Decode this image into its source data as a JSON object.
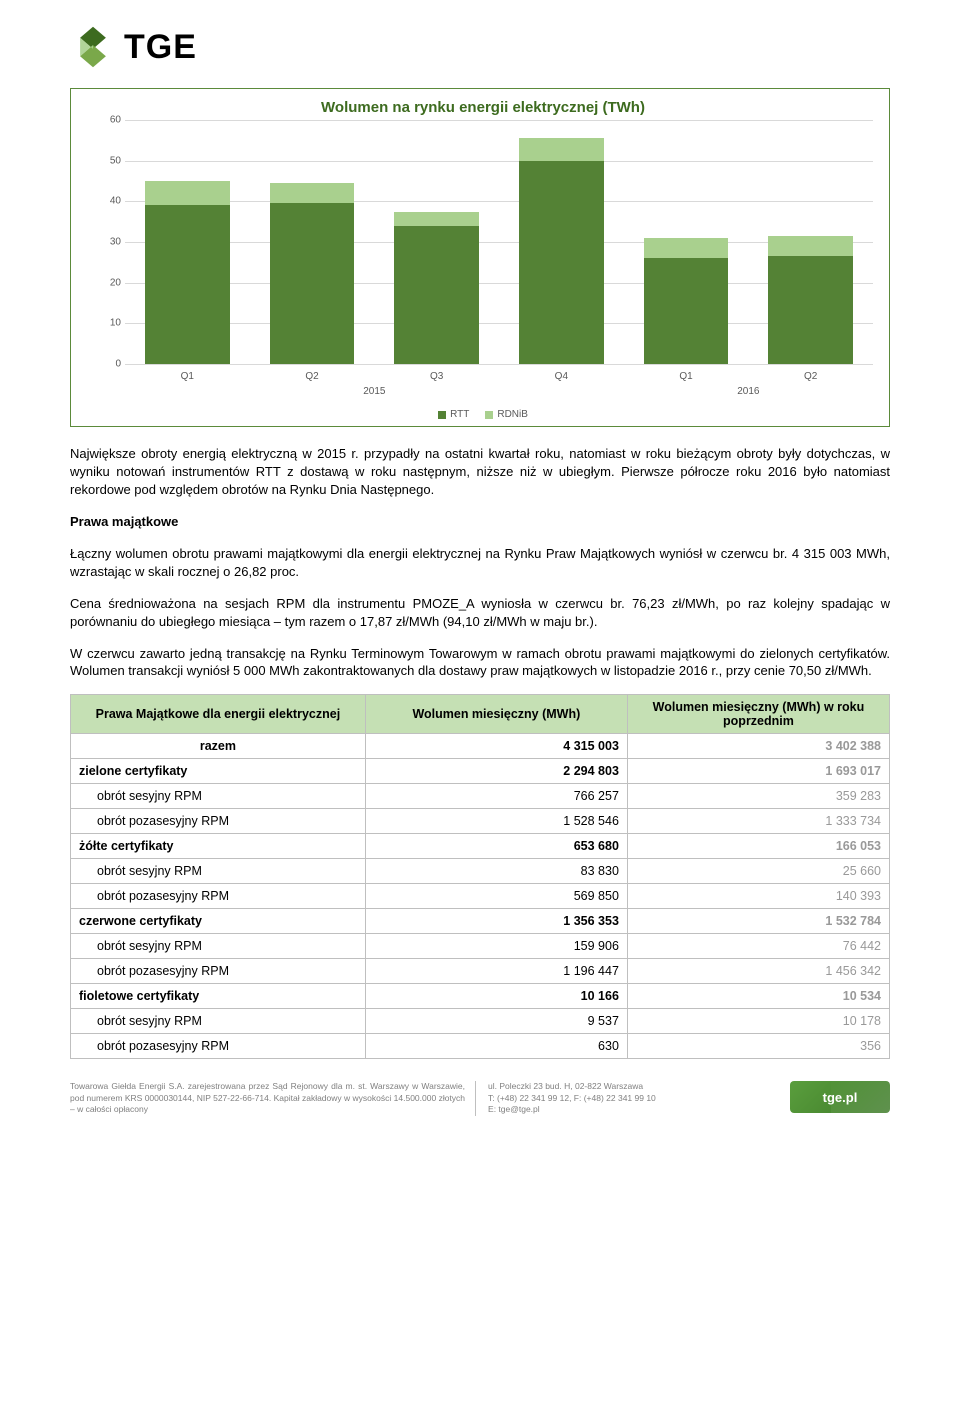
{
  "logo": {
    "text": "TGE",
    "diamond_dark": "#3d6b1f",
    "diamond_light": "#7aa84a"
  },
  "chart": {
    "type": "stacked-bar",
    "title": "Wolumen na rynku energii elektrycznej (TWh)",
    "ylim": [
      0,
      60
    ],
    "ytick_step": 10,
    "categories": [
      "Q1",
      "Q2",
      "Q3",
      "Q4",
      "Q1",
      "Q2"
    ],
    "group_labels": [
      "2015",
      "2016"
    ],
    "group_span": [
      4,
      2
    ],
    "series": {
      "RTT": {
        "color": "#548235",
        "values": [
          39,
          39.5,
          34,
          50,
          26,
          26.5
        ]
      },
      "RDNiB": {
        "color": "#a9d08e",
        "values": [
          6,
          5,
          3.5,
          5.5,
          5,
          5
        ]
      }
    },
    "legend": [
      "RTT",
      "RDNiB"
    ],
    "gridline_color": "#d9d9d9",
    "label_color": "#595959"
  },
  "paragraphs": {
    "p1": "Największe obroty energią elektryczną w 2015 r. przypadły na ostatni kwartał roku, natomiast w roku bieżącym obroty były dotychczas, w wyniku notowań instrumentów RTT z dostawą w roku następnym, niższe niż w ubiegłym. Pierwsze półrocze roku 2016 było natomiast rekordowe pod względem obrotów na Rynku Dnia Następnego.",
    "head": "Prawa majątkowe",
    "p2": "Łączny wolumen obrotu prawami majątkowymi dla energii elektrycznej na Rynku Praw Majątkowych wyniósł w czerwcu br. 4 315 003 MWh, wzrastając w skali rocznej o 26,82 proc.",
    "p3": "Cena średnioważona na sesjach RPM dla instrumentu PMOZE_A wyniosła w czerwcu br. 76,23 zł/MWh, po raz kolejny spadając w porównaniu do ubiegłego miesiąca – tym razem o 17,87 zł/MWh (94,10 zł/MWh w maju br.).",
    "p4": "W czerwcu zawarto jedną transakcję na Rynku Terminowym Towarowym w ramach obrotu prawami majątkowymi do zielonych certyfikatów. Wolumen transakcji wyniósł 5 000 MWh zakontraktowanych dla dostawy praw majątkowych w listopadzie 2016 r., przy cenie 70,50 zł/MWh."
  },
  "table": {
    "headers": {
      "c1": "Prawa Majątkowe dla energii elektrycznej",
      "c2": "Wolumen miesięczny (MWh)",
      "c3": "Wolumen miesięczny (MWh) w roku poprzednim"
    },
    "rows": [
      {
        "label": "razem",
        "v": "4 315 003",
        "p": "3 402 388",
        "bold": true,
        "indent": false,
        "center": true
      },
      {
        "label": "zielone certyfikaty",
        "v": "2 294 803",
        "p": "1 693 017",
        "bold": true,
        "indent": false
      },
      {
        "label": "obrót sesyjny RPM",
        "v": "766 257",
        "p": "359 283",
        "bold": false,
        "indent": true
      },
      {
        "label": "obrót pozasesyjny RPM",
        "v": "1 528 546",
        "p": "1 333 734",
        "bold": false,
        "indent": true
      },
      {
        "label": "żółte certyfikaty",
        "v": "653 680",
        "p": "166 053",
        "bold": true,
        "indent": false
      },
      {
        "label": "obrót sesyjny RPM",
        "v": "83 830",
        "p": "25 660",
        "bold": false,
        "indent": true
      },
      {
        "label": "obrót pozasesyjny RPM",
        "v": "569 850",
        "p": "140 393",
        "bold": false,
        "indent": true
      },
      {
        "label": "czerwone certyfikaty",
        "v": "1 356 353",
        "p": "1 532 784",
        "bold": true,
        "indent": false
      },
      {
        "label": "obrót sesyjny RPM",
        "v": "159 906",
        "p": "76 442",
        "bold": false,
        "indent": true
      },
      {
        "label": "obrót pozasesyjny RPM",
        "v": "1 196 447",
        "p": "1 456 342",
        "bold": false,
        "indent": true
      },
      {
        "label": "fioletowe certyfikaty",
        "v": "10 166",
        "p": "10 534",
        "bold": true,
        "indent": false
      },
      {
        "label": "obrót sesyjny RPM",
        "v": "9 537",
        "p": "10 178",
        "bold": false,
        "indent": true
      },
      {
        "label": "obrót pozasesyjny RPM",
        "v": "630",
        "p": "356",
        "bold": false,
        "indent": true
      }
    ]
  },
  "footer": {
    "col1": "Towarowa Giełda Energii S.A. zarejestrowana przez Sąd Rejonowy dla m. st. Warszawy w Warszawie, pod numerem KRS 0000030144, NIP 527-22-66-714. Kapitał zakładowy w wysokości 14.500.000 złotych – w całości opłacony",
    "col2_l1": "ul. Poleczki 23 bud. H, 02-822 Warszawa",
    "col2_l2": "T: (+48) 22 341 99 12, F: (+48) 22 341 99 10",
    "col2_l3": "E: tge@tge.pl",
    "logo_text": "tge.pl"
  }
}
